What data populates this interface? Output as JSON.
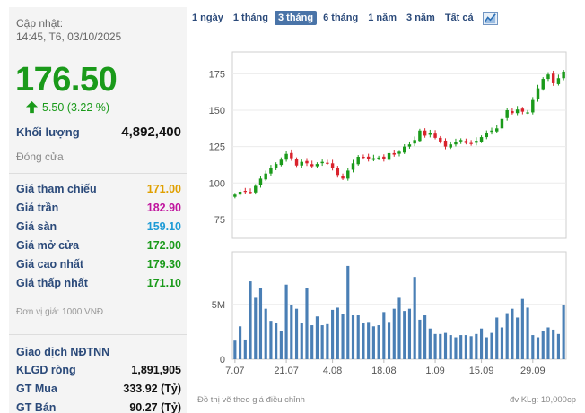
{
  "updated": {
    "label": "Cập nhật:",
    "time": "14:45, T6, 03/10/2025"
  },
  "price": "176.50",
  "change": "5.50 (3.22 %)",
  "volume": {
    "label": "Khối lượng",
    "value": "4,892,400"
  },
  "state": "Đóng cửa",
  "stats": [
    {
      "label": "Giá tham chiếu",
      "value": "171.00",
      "color": "#e0a000"
    },
    {
      "label": "Giá trần",
      "value": "182.90",
      "color": "#c0149e"
    },
    {
      "label": "Giá sàn",
      "value": "159.10",
      "color": "#1f9bd6"
    },
    {
      "label": "Giá mở cửa",
      "value": "172.00",
      "color": "#1a9a1a"
    },
    {
      "label": "Giá cao nhất",
      "value": "179.30",
      "color": "#1a9a1a"
    },
    {
      "label": "Giá thấp nhất",
      "value": "171.10",
      "color": "#1a9a1a"
    }
  ],
  "unit_note": "Đơn vị giá: 1000 VNĐ",
  "foreign": {
    "title": "Giao dịch NĐTNN",
    "rows": [
      {
        "label": "KLGD ròng",
        "value": "1,891,905"
      },
      {
        "label": "GT Mua",
        "value": "333.92 (Tỷ)"
      },
      {
        "label": "GT Bán",
        "value": "90.27 (Tỷ)"
      }
    ]
  },
  "tabs": [
    "1 ngày",
    "1 tháng",
    "3 tháng",
    "6 tháng",
    "1 năm",
    "3 năm",
    "Tất cả"
  ],
  "active_tab": "3 tháng",
  "footer": {
    "note": "Đồ thị vẽ theo giá điều chỉnh",
    "kl_unit": "đv KLg: 10,000cp"
  },
  "colors": {
    "up": "#1a9a1a",
    "down": "#d9232d",
    "candle_up": "#2f6f9f",
    "vol": "#4a7fb5"
  },
  "chart_data": {
    "type": "candlestick",
    "price_axis": {
      "ticks": [
        75,
        100,
        125,
        150,
        175
      ],
      "ylim": [
        62,
        190
      ]
    },
    "volume_axis": {
      "ticks": [
        "0",
        "5M"
      ],
      "ylim": [
        0,
        9800000
      ]
    },
    "x_ticks": [
      {
        "label": "7.07",
        "index": 0
      },
      {
        "label": "21.07",
        "index": 10
      },
      {
        "label": "4.08",
        "index": 19
      },
      {
        "label": "18.08",
        "index": 29
      },
      {
        "label": "1.09",
        "index": 39
      },
      {
        "label": "15.09",
        "index": 48
      },
      {
        "label": "29.09",
        "index": 58
      }
    ],
    "close": [
      92.0,
      94.0,
      94.5,
      93.5,
      98.0,
      103.0,
      106.5,
      110.0,
      113.0,
      116.0,
      120.0,
      117.0,
      112.0,
      114.5,
      113.5,
      111.5,
      113.0,
      114.5,
      113.5,
      110.0,
      105.5,
      103.0,
      108.5,
      113.5,
      118.0,
      117.5,
      116.5,
      117.0,
      117.5,
      116.5,
      120.5,
      119.5,
      121.5,
      125.0,
      126.5,
      129.5,
      136.0,
      132.5,
      134.5,
      131.0,
      128.5,
      125.0,
      126.5,
      128.0,
      129.5,
      127.5,
      127.0,
      129.0,
      131.5,
      134.5,
      136.0,
      137.5,
      144.0,
      150.0,
      148.0,
      150.5,
      149.0,
      148.5,
      157.0,
      165.0,
      171.5,
      174.5,
      168.5,
      172.0,
      176.5
    ],
    "volume": [
      1700000,
      3000000,
      1800000,
      7100000,
      5600000,
      6500000,
      4600000,
      3500000,
      3300000,
      2600000,
      6800000,
      4900000,
      4600000,
      3300000,
      6500000,
      3100000,
      3900000,
      3100000,
      3200000,
      4500000,
      4700000,
      4100000,
      8500000,
      4000000,
      4000000,
      3300000,
      3400000,
      3000000,
      3100000,
      4300000,
      3400000,
      4600000,
      5600000,
      4400000,
      4600000,
      7500000,
      3600000,
      4000000,
      2800000,
      2300000,
      2300000,
      2400000,
      2200000,
      2000000,
      2200000,
      2200000,
      2100000,
      2300000,
      2800000,
      2000000,
      2400000,
      3800000,
      2900000,
      4200000,
      4600000,
      3800000,
      5500000,
      4700000,
      2200000,
      2000000,
      2600000,
      2900000,
      2700000,
      2300000,
      4900000
    ]
  }
}
